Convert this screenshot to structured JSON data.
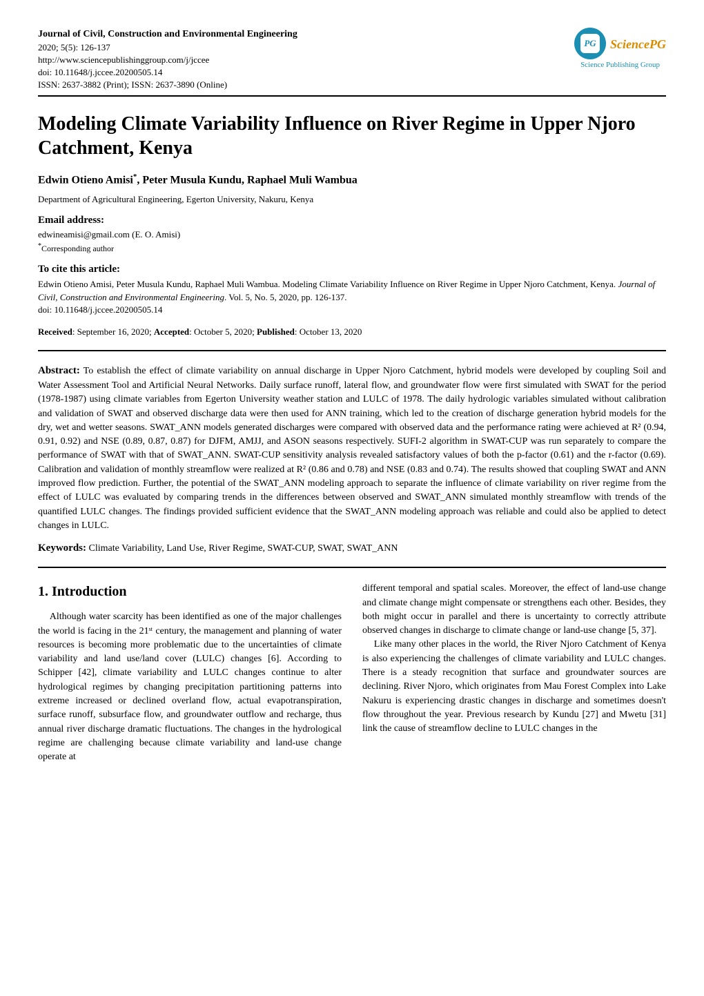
{
  "header": {
    "journal_title": "Journal of Civil, Construction and Environmental Engineering",
    "issue_line": "2020; 5(5): 126-137",
    "url": "http://www.sciencepublishinggroup.com/j/jccee",
    "doi": "doi: 10.11648/j.jccee.20200505.14",
    "issn": "ISSN: 2637-3882 (Print); ISSN: 2637-3890 (Online)",
    "logo_abbr": "PG",
    "logo_text1": "SciencePG",
    "logo_text2": "Science Publishing Group",
    "logo_colors": {
      "circle": "#1a8fb3",
      "brand": "#d88b00"
    }
  },
  "paper": {
    "title": "Modeling Climate Variability Influence on River Regime in Upper Njoro Catchment, Kenya",
    "authors_html_parts": {
      "a1": "Edwin Otieno Amisi",
      "a1_sup": "*",
      "sep1": ", ",
      "a2": "Peter Musula Kundu",
      "sep2": ", ",
      "a3": "Raphael Muli Wambua"
    },
    "affiliation": "Department of Agricultural Engineering, Egerton University, Nakuru, Kenya",
    "email_head": "Email address:",
    "email_line": "edwineamisi@gmail.com (E. O. Amisi)",
    "corresponding": "Corresponding author",
    "cite_head": "To cite this article:",
    "cite_text_prefix": "Edwin Otieno Amisi, Peter Musula Kundu, Raphael Muli Wambua. Modeling Climate Variability Influence on River Regime in Upper Njoro Catchment, Kenya. ",
    "cite_journal": "Journal of Civil, Construction and Environmental Engineering",
    "cite_text_suffix": ". Vol. 5, No. 5, 2020, pp. 126-137.",
    "cite_doi": "doi: 10.11648/j.jccee.20200505.14",
    "dates": {
      "received_label": "Received",
      "received": ": September 16, 2020; ",
      "accepted_label": "Accepted",
      "accepted": ": October 5, 2020; ",
      "published_label": "Published",
      "published": ": October 13, 2020"
    },
    "abstract_label": "Abstract:",
    "abstract": " To establish the effect of climate variability on annual discharge in Upper Njoro Catchment, hybrid models were developed by coupling Soil and Water Assessment Tool and Artificial Neural Networks. Daily surface runoff, lateral flow, and groundwater flow were first simulated with SWAT for the period (1978-1987) using climate variables from Egerton University weather station and LULC of 1978. The daily hydrologic variables simulated without calibration and validation of SWAT and observed discharge data were then used for ANN training, which led to the creation of discharge generation hybrid models for the dry, wet and wetter seasons. SWAT_ANN models generated discharges were compared with observed data and the performance rating were achieved at R² (0.94, 0.91, 0.92) and NSE (0.89, 0.87, 0.87) for DJFM, AMJJ, and ASON seasons respectively. SUFI-2 algorithm in SWAT-CUP was run separately to compare the performance of SWAT with that of SWAT_ANN. SWAT-CUP sensitivity analysis revealed satisfactory values of both the p-factor (0.61) and the r-factor (0.69). Calibration and validation of monthly streamflow were realized at R² (0.86 and 0.78) and NSE (0.83 and 0.74). The results showed that coupling SWAT and ANN improved flow prediction. Further, the potential of the SWAT_ANN modeling approach to separate the influence of climate variability on river regime from the effect of LULC was evaluated by comparing trends in the differences between observed and SWAT_ANN simulated monthly streamflow with trends of the quantified LULC changes. The findings provided sufficient evidence that the SWAT_ANN modeling approach was reliable and could also be applied to detect changes in LULC.",
    "keywords_label": "Keywords:",
    "keywords": " Climate Variability, Land Use, River Regime, SWAT-CUP, SWAT, SWAT_ANN"
  },
  "body": {
    "intro_heading": "1. Introduction",
    "col1_p1": "Although water scarcity has been identified as one of the major challenges the world is facing in the 21ˢᵗ century, the management and planning of water resources is becoming more problematic due to the uncertainties of climate variability and land use/land cover (LULC) changes [6]. According to Schipper [42], climate variability and LULC changes continue to alter hydrological regimes by changing precipitation partitioning patterns into extreme increased or declined overland flow, actual evapotranspiration, surface runoff, subsurface flow, and groundwater outflow and recharge, thus annual river discharge dramatic fluctuations. The changes in the hydrological regime are challenging because climate variability and land-use change operate at",
    "col2_p1": "different temporal and spatial scales. Moreover, the effect of land-use change and climate change might compensate or strengthens each other. Besides, they both might occur in parallel and there is uncertainty to correctly attribute observed changes in discharge to climate change or land-use change [5, 37].",
    "col2_p2": "Like many other places in the world, the River Njoro Catchment of Kenya is also experiencing the challenges of climate variability and LULC changes. There is a steady recognition that surface and groundwater sources are declining. River Njoro, which originates from Mau Forest Complex into Lake Nakuru is experiencing drastic changes in discharge and sometimes doesn't flow throughout the year. Previous research by Kundu [27] and Mwetu [31] link the cause of streamflow decline to LULC changes in the"
  }
}
